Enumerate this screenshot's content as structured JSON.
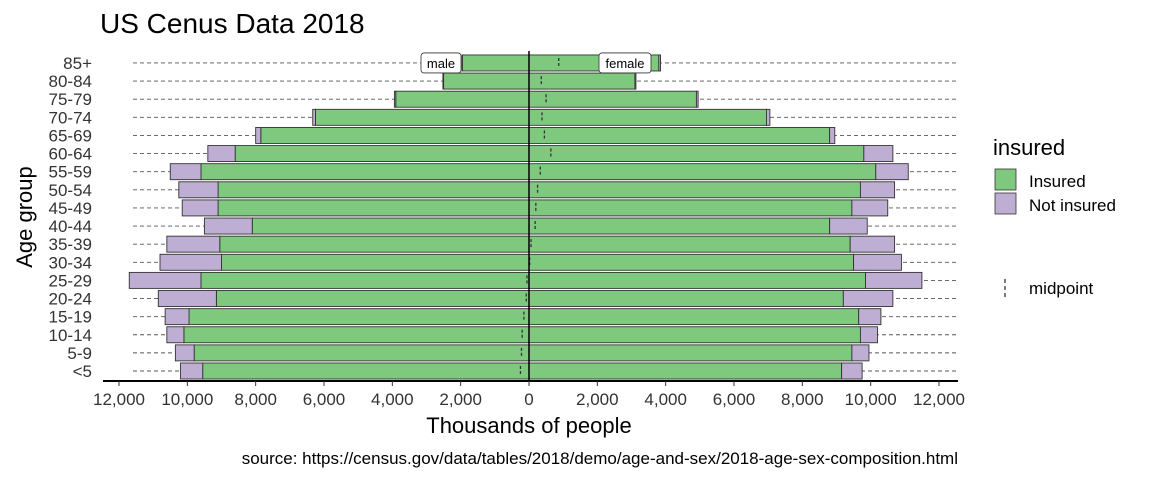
{
  "colors": {
    "insured": "#7fc97f",
    "not_insured": "#beaed4"
  },
  "caption": "source: https://census.gov/data/tables/2018/demo/age-and-sex/2018-age-sex-composition.html",
  "legend": {
    "title": "insured",
    "items": [
      {
        "label": "Insured",
        "key": "insured"
      },
      {
        "label": "Not insured",
        "key": "not_insured"
      }
    ],
    "midpoint_label": "midpoint"
  },
  "chart_data": {
    "type": "bar",
    "orientation": "horizontal-population-pyramid",
    "title": "US Cenus Data 2018",
    "xlabel": "Thousands of people",
    "ylabel": "Age group",
    "xlim": [
      -12000,
      12000
    ],
    "x_ticks": [
      -12000,
      -10000,
      -8000,
      -6000,
      -4000,
      -2000,
      0,
      2000,
      4000,
      6000,
      8000,
      10000,
      12000
    ],
    "x_tick_labels": [
      "12,000",
      "10,000",
      "8,000",
      "6,000",
      "4,000",
      "2,000",
      "0",
      "2,000",
      "4,000",
      "6,000",
      "8,000",
      "10,000",
      "12,000"
    ],
    "side_labels": {
      "male": "male",
      "female": "female"
    },
    "categories": [
      "<5",
      "5-9",
      "10-14",
      "15-19",
      "20-24",
      "25-29",
      "30-34",
      "35-39",
      "40-44",
      "45-49",
      "50-54",
      "55-59",
      "60-64",
      "65-69",
      "70-74",
      "75-79",
      "80-84",
      "85+"
    ],
    "series": [
      {
        "name": "Insured",
        "sex": "male",
        "values": [
          9550,
          9800,
          10100,
          9950,
          9150,
          9600,
          9000,
          9050,
          8100,
          9100,
          9100,
          9600,
          8600,
          7850,
          6250,
          3900,
          2500,
          1950
        ]
      },
      {
        "name": "Not insured",
        "sex": "male",
        "values": [
          650,
          550,
          500,
          700,
          1700,
          2100,
          1800,
          1550,
          1400,
          1050,
          1150,
          900,
          800,
          150,
          80,
          40,
          20,
          10
        ]
      },
      {
        "name": "Insured",
        "sex": "female",
        "values": [
          9150,
          9450,
          9700,
          9650,
          9200,
          9850,
          9500,
          9400,
          8800,
          9450,
          9700,
          10150,
          9800,
          8800,
          6950,
          4900,
          3100,
          3800
        ]
      },
      {
        "name": "Not insured",
        "sex": "female",
        "values": [
          600,
          500,
          500,
          650,
          1450,
          1650,
          1400,
          1300,
          1100,
          1050,
          1000,
          950,
          850,
          150,
          100,
          50,
          30,
          50
        ]
      }
    ],
    "midpoints": [
      -250,
      -220,
      -200,
      -150,
      -80,
      -60,
      20,
      60,
      180,
      200,
      250,
      330,
      640,
      450,
      380,
      500,
      360,
      870
    ],
    "legend_position": "right",
    "grid": "dashed horizontal lines at each age group"
  }
}
